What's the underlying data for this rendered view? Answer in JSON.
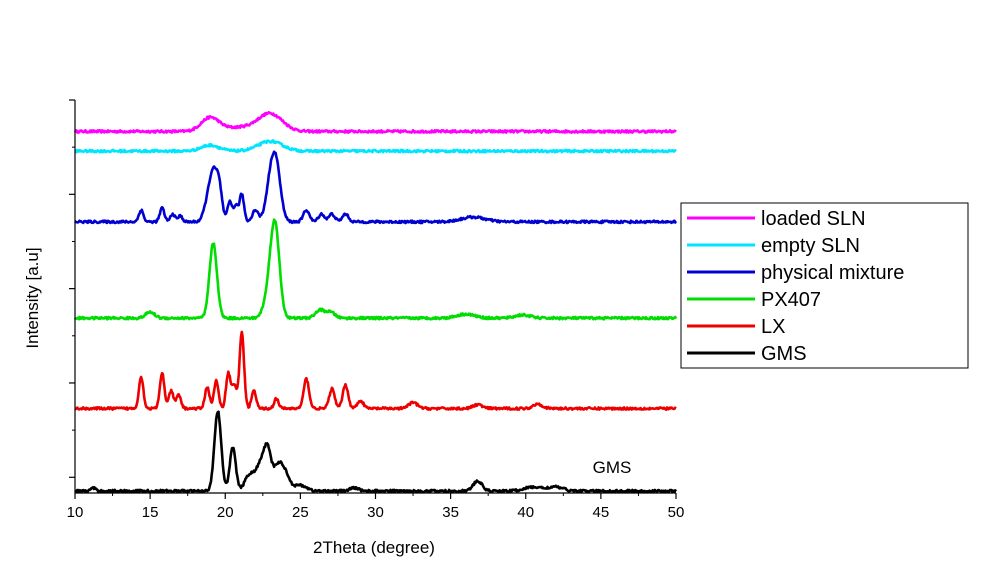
{
  "chart_data": {
    "type": "line",
    "title": "",
    "xlabel": "2Theta (degree)",
    "ylabel": "Intensity [a.u]",
    "xlim": [
      10,
      50
    ],
    "xticks": [
      10,
      15,
      20,
      25,
      30,
      35,
      40,
      45,
      50
    ],
    "y_tick_labels": "none",
    "grid": false,
    "legend_position": "right",
    "annotation": "GMS",
    "series": [
      {
        "name": "loaded SLN",
        "color": "#ff00ff",
        "baseline": 0.92,
        "peaks": [
          [
            19.0,
            0.035,
            0.6
          ],
          [
            23.0,
            0.045,
            0.8
          ],
          [
            21.0,
            0.01,
            1.0
          ]
        ]
      },
      {
        "name": "empty SLN",
        "color": "#00e5ff",
        "baseline": 0.87,
        "peaks": [
          [
            19.0,
            0.015,
            0.6
          ],
          [
            23.0,
            0.025,
            0.8
          ]
        ]
      },
      {
        "name": "physical mixture",
        "color": "#0000d0",
        "baseline": 0.69,
        "peaks": [
          [
            14.4,
            0.03,
            0.15
          ],
          [
            15.8,
            0.035,
            0.15
          ],
          [
            16.5,
            0.02,
            0.15
          ],
          [
            17.0,
            0.015,
            0.15
          ],
          [
            18.8,
            0.04,
            0.25
          ],
          [
            19.2,
            0.115,
            0.25
          ],
          [
            19.6,
            0.08,
            0.2
          ],
          [
            20.3,
            0.05,
            0.15
          ],
          [
            20.7,
            0.04,
            0.15
          ],
          [
            21.1,
            0.07,
            0.15
          ],
          [
            22.0,
            0.03,
            0.2
          ],
          [
            23.0,
            0.09,
            0.3
          ],
          [
            23.4,
            0.13,
            0.3
          ],
          [
            25.4,
            0.03,
            0.2
          ],
          [
            26.4,
            0.02,
            0.2
          ],
          [
            27.1,
            0.02,
            0.2
          ],
          [
            28.0,
            0.02,
            0.2
          ],
          [
            36.5,
            0.012,
            0.8
          ]
        ]
      },
      {
        "name": "PX407",
        "color": "#00dd00",
        "baseline": 0.445,
        "peaks": [
          [
            15.0,
            0.015,
            0.3
          ],
          [
            19.2,
            0.19,
            0.25
          ],
          [
            23.3,
            0.24,
            0.3
          ],
          [
            22.8,
            0.04,
            0.3
          ],
          [
            26.3,
            0.02,
            0.3
          ],
          [
            27.0,
            0.015,
            0.3
          ],
          [
            36.0,
            0.01,
            0.6
          ],
          [
            39.8,
            0.008,
            0.5
          ]
        ]
      },
      {
        "name": "LX",
        "color": "#ee0000",
        "baseline": 0.215,
        "peaks": [
          [
            14.4,
            0.08,
            0.15
          ],
          [
            15.8,
            0.09,
            0.15
          ],
          [
            16.4,
            0.045,
            0.15
          ],
          [
            16.9,
            0.035,
            0.15
          ],
          [
            18.8,
            0.055,
            0.15
          ],
          [
            19.4,
            0.07,
            0.15
          ],
          [
            20.2,
            0.09,
            0.15
          ],
          [
            20.6,
            0.06,
            0.15
          ],
          [
            21.1,
            0.195,
            0.15
          ],
          [
            21.9,
            0.045,
            0.15
          ],
          [
            23.4,
            0.025,
            0.15
          ],
          [
            25.4,
            0.075,
            0.18
          ],
          [
            27.1,
            0.05,
            0.18
          ],
          [
            28.0,
            0.06,
            0.18
          ],
          [
            29.0,
            0.02,
            0.2
          ],
          [
            32.5,
            0.015,
            0.3
          ],
          [
            36.8,
            0.01,
            0.3
          ],
          [
            40.8,
            0.012,
            0.3
          ]
        ]
      },
      {
        "name": "GMS",
        "color": "#000000",
        "baseline": 0.005,
        "peaks": [
          [
            11.2,
            0.008,
            0.15
          ],
          [
            19.4,
            0.11,
            0.2
          ],
          [
            19.6,
            0.12,
            0.2
          ],
          [
            20.5,
            0.11,
            0.2
          ],
          [
            21.6,
            0.04,
            0.3
          ],
          [
            22.3,
            0.06,
            0.3
          ],
          [
            22.8,
            0.1,
            0.25
          ],
          [
            23.5,
            0.06,
            0.3
          ],
          [
            24.0,
            0.04,
            0.3
          ],
          [
            25.0,
            0.015,
            0.4
          ],
          [
            28.6,
            0.008,
            0.3
          ],
          [
            36.8,
            0.025,
            0.3
          ],
          [
            40.5,
            0.01,
            0.6
          ],
          [
            42.0,
            0.01,
            0.5
          ]
        ]
      }
    ]
  }
}
